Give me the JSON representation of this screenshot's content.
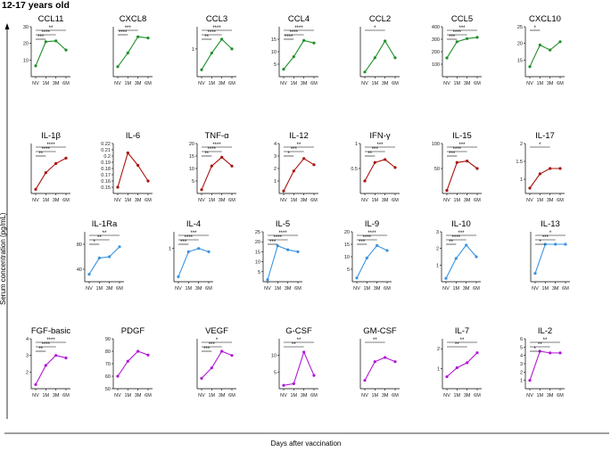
{
  "header": {
    "age_group": "12-17 years old"
  },
  "axis": {
    "y_label": "Serum concentration (pg/mL)",
    "x_label": "Days after vaccination"
  },
  "colors": {
    "green": "#1f8f2a",
    "red": "#a8120e",
    "blue": "#3a93e0",
    "purple": "#b117d6"
  },
  "chart_data": [
    {
      "type": "line",
      "title": "CCL11",
      "row": 0,
      "color": "green",
      "categories": [
        "NV",
        "1M",
        "3M",
        "6M"
      ],
      "values": [
        6.5,
        21,
        21.5,
        16
      ],
      "ylim": [
        0,
        30
      ],
      "yticks": [
        10,
        20,
        30
      ],
      "significance": [
        {
          "from": 0,
          "to": 3,
          "label": "**"
        },
        {
          "from": 0,
          "to": 2,
          "label": "****"
        },
        {
          "from": 0,
          "to": 1,
          "label": "***"
        }
      ]
    },
    {
      "type": "line",
      "title": "CXCL8",
      "row": 0,
      "color": "green",
      "categories": [
        "NV",
        "1M",
        "3M",
        "6M"
      ],
      "values": [
        0.9,
        1.45,
        2.1,
        2.05
      ],
      "ylim": [
        0.5,
        2.5
      ],
      "yticks": [],
      "significance": [
        {
          "from": 0,
          "to": 2,
          "label": "***"
        },
        {
          "from": 0,
          "to": 1,
          "label": "****"
        }
      ]
    },
    {
      "type": "line",
      "title": "CCL3",
      "row": 0,
      "color": "green",
      "categories": [
        "NV",
        "1M",
        "3M",
        "6M"
      ],
      "values": [
        0.25,
        0.85,
        1.35,
        1.0
      ],
      "ylim": [
        0,
        1.8
      ],
      "yticks": [
        1
      ],
      "significance": [
        {
          "from": 0,
          "to": 3,
          "label": "****"
        },
        {
          "from": 0,
          "to": 2,
          "label": "****"
        },
        {
          "from": 0,
          "to": 1,
          "label": "**"
        }
      ]
    },
    {
      "type": "line",
      "title": "CCL4",
      "row": 0,
      "color": "green",
      "categories": [
        "NV",
        "1M",
        "3M",
        "6M"
      ],
      "values": [
        3,
        8,
        14.5,
        13.5
      ],
      "ylim": [
        0,
        20
      ],
      "yticks": [
        5,
        10,
        15
      ],
      "significance": [
        {
          "from": 0,
          "to": 3,
          "label": "****"
        },
        {
          "from": 0,
          "to": 2,
          "label": "****"
        },
        {
          "from": 0,
          "to": 1,
          "label": "****"
        }
      ]
    },
    {
      "type": "line",
      "title": "CCL2",
      "row": 0,
      "color": "green",
      "categories": [
        "NV",
        "1M",
        "3M",
        "6M"
      ],
      "values": [
        5.3,
        9.3,
        14,
        9.3
      ],
      "ylim": [
        4,
        18
      ],
      "yticks": [],
      "significance": [
        {
          "from": 0,
          "to": 2,
          "label": "*"
        }
      ]
    },
    {
      "type": "line",
      "title": "CCL5",
      "row": 0,
      "color": "green",
      "categories": [
        "NV",
        "1M",
        "3M",
        "6M"
      ],
      "values": [
        150,
        280,
        305,
        315
      ],
      "ylim": [
        0,
        400
      ],
      "yticks": [
        100,
        200,
        300,
        400
      ],
      "significance": [
        {
          "from": 0,
          "to": 3,
          "label": "***"
        },
        {
          "from": 0,
          "to": 2,
          "label": "****"
        },
        {
          "from": 0,
          "to": 1,
          "label": "***"
        }
      ]
    },
    {
      "type": "line",
      "title": "CXCL10",
      "row": 0,
      "color": "green",
      "categories": [
        "NV",
        "1M",
        "3M",
        "6M"
      ],
      "values": [
        13,
        19.5,
        18,
        20.5
      ],
      "ylim": [
        10,
        25
      ],
      "yticks": [
        15,
        20,
        25
      ],
      "significance": [
        {
          "from": 0,
          "to": 1,
          "label": "*"
        }
      ]
    },
    {
      "type": "line",
      "title": "IL-1β",
      "row": 1,
      "color": "red",
      "categories": [
        "NV",
        "1M",
        "3M",
        "6M"
      ],
      "values": [
        0.1,
        0.5,
        0.72,
        0.85
      ],
      "ylim": [
        0,
        1.2
      ],
      "yticks": [],
      "significance": [
        {
          "from": 0,
          "to": 3,
          "label": "****"
        },
        {
          "from": 0,
          "to": 2,
          "label": "****"
        },
        {
          "from": 0,
          "to": 1,
          "label": "**"
        }
      ]
    },
    {
      "type": "line",
      "title": "IL-6",
      "row": 1,
      "color": "red",
      "categories": [
        "NV",
        "1M",
        "3M",
        "6M"
      ],
      "values": [
        0.15,
        0.205,
        0.185,
        0.16
      ],
      "ylim": [
        0.14,
        0.22
      ],
      "yticks": [
        0.15,
        0.16,
        0.17,
        0.18,
        0.19,
        0.2,
        0.21,
        0.22
      ],
      "significance": []
    },
    {
      "type": "line",
      "title": "TNF-α",
      "row": 1,
      "color": "red",
      "categories": [
        "NV",
        "1M",
        "3M",
        "6M"
      ],
      "values": [
        1.5,
        11,
        14.5,
        11
      ],
      "ylim": [
        0,
        20
      ],
      "yticks": [
        5,
        10,
        15,
        20
      ],
      "significance": [
        {
          "from": 0,
          "to": 3,
          "label": "****"
        },
        {
          "from": 0,
          "to": 2,
          "label": "****"
        },
        {
          "from": 0,
          "to": 1,
          "label": "**"
        }
      ]
    },
    {
      "type": "line",
      "title": "IL-12",
      "row": 1,
      "color": "red",
      "categories": [
        "NV",
        "1M",
        "3M",
        "6M"
      ],
      "values": [
        0.2,
        1.8,
        2.8,
        2.3
      ],
      "ylim": [
        0,
        4
      ],
      "yticks": [
        1,
        2,
        3,
        4
      ],
      "significance": [
        {
          "from": 0,
          "to": 3,
          "label": "**"
        },
        {
          "from": 0,
          "to": 2,
          "label": "***"
        },
        {
          "from": 0,
          "to": 1,
          "label": "*"
        }
      ]
    },
    {
      "type": "line",
      "title": "IFN-γ",
      "row": 1,
      "color": "red",
      "categories": [
        "NV",
        "1M",
        "3M",
        "6M"
      ],
      "values": [
        0.25,
        0.62,
        0.68,
        0.52
      ],
      "ylim": [
        0,
        1
      ],
      "yticks": [
        0.5,
        1.0
      ],
      "significance": [
        {
          "from": 0,
          "to": 3,
          "label": "***"
        },
        {
          "from": 0,
          "to": 2,
          "label": "***"
        },
        {
          "from": 0,
          "to": 1,
          "label": "**"
        }
      ]
    },
    {
      "type": "line",
      "title": "IL-15",
      "row": 1,
      "color": "red",
      "categories": [
        "NV",
        "1M",
        "3M",
        "6M"
      ],
      "values": [
        6,
        62,
        65,
        50
      ],
      "ylim": [
        0,
        100
      ],
      "yticks": [
        50,
        100
      ],
      "significance": [
        {
          "from": 0,
          "to": 3,
          "label": "***"
        },
        {
          "from": 0,
          "to": 2,
          "label": "****"
        },
        {
          "from": 0,
          "to": 1,
          "label": "***"
        }
      ]
    },
    {
      "type": "line",
      "title": "IL-17",
      "row": 1,
      "color": "red",
      "categories": [
        "NV",
        "1M",
        "3M",
        "6M"
      ],
      "values": [
        0.75,
        1.15,
        1.3,
        1.3
      ],
      "ylim": [
        0.6,
        2.0
      ],
      "yticks": [
        1.0,
        1.5,
        2.0
      ],
      "significance": [
        {
          "from": 0,
          "to": 2,
          "label": "*"
        }
      ]
    },
    {
      "type": "line",
      "title": "IL-1Ra",
      "row": 2,
      "color": "blue",
      "categories": [
        "NV",
        "1M",
        "3M",
        "6M"
      ],
      "values": [
        32,
        58,
        60,
        76
      ],
      "ylim": [
        20,
        100
      ],
      "yticks": [
        40,
        80
      ],
      "significance": [
        {
          "from": 0,
          "to": 3,
          "label": "**"
        },
        {
          "from": 0,
          "to": 2,
          "label": "**"
        },
        {
          "from": 0,
          "to": 1,
          "label": "*"
        }
      ]
    },
    {
      "type": "line",
      "title": "IL-4",
      "row": 2,
      "color": "blue",
      "categories": [
        "NV",
        "1M",
        "3M",
        "6M"
      ],
      "values": [
        0.15,
        0.9,
        1.0,
        0.9
      ],
      "ylim": [
        0,
        1.5
      ],
      "yticks": [
        1
      ],
      "significance": [
        {
          "from": 0,
          "to": 3,
          "label": "***"
        },
        {
          "from": 0,
          "to": 2,
          "label": "****"
        },
        {
          "from": 0,
          "to": 1,
          "label": "***"
        }
      ]
    },
    {
      "type": "line",
      "title": "IL-5",
      "row": 2,
      "color": "blue",
      "categories": [
        "NV",
        "1M",
        "3M",
        "6M"
      ],
      "values": [
        1,
        18,
        16,
        15
      ],
      "ylim": [
        0,
        25
      ],
      "yticks": [
        5,
        10,
        15,
        20,
        25
      ],
      "significance": [
        {
          "from": 0,
          "to": 3,
          "label": "****"
        },
        {
          "from": 0,
          "to": 2,
          "label": "****"
        },
        {
          "from": 0,
          "to": 1,
          "label": "***"
        }
      ]
    },
    {
      "type": "line",
      "title": "IL-9",
      "row": 2,
      "color": "blue",
      "categories": [
        "NV",
        "1M",
        "3M",
        "6M"
      ],
      "values": [
        1.5,
        9.5,
        14.5,
        12.5
      ],
      "ylim": [
        0,
        20
      ],
      "yticks": [
        5,
        10,
        15,
        20
      ],
      "significance": [
        {
          "from": 0,
          "to": 3,
          "label": "****"
        },
        {
          "from": 0,
          "to": 2,
          "label": "****"
        },
        {
          "from": 0,
          "to": 1,
          "label": "***"
        }
      ]
    },
    {
      "type": "line",
      "title": "IL-10",
      "row": 2,
      "color": "blue",
      "categories": [
        "NV",
        "1M",
        "3M",
        "6M"
      ],
      "values": [
        0.2,
        1.4,
        2.2,
        1.5
      ],
      "ylim": [
        0,
        3
      ],
      "yticks": [
        1,
        2,
        3
      ],
      "significance": [
        {
          "from": 0,
          "to": 3,
          "label": "***"
        },
        {
          "from": 0,
          "to": 2,
          "label": "****"
        },
        {
          "from": 0,
          "to": 1,
          "label": "**"
        }
      ]
    },
    {
      "type": "line",
      "title": "IL-13",
      "row": 2,
      "color": "blue",
      "categories": [
        "NV",
        "1M",
        "3M",
        "6M"
      ],
      "values": [
        0.1,
        0.45,
        0.45,
        0.45
      ],
      "ylim": [
        0,
        0.6
      ],
      "yticks": [],
      "significance": [
        {
          "from": 0,
          "to": 3,
          "label": "*"
        },
        {
          "from": 0,
          "to": 2,
          "label": "***"
        },
        {
          "from": 0,
          "to": 1,
          "label": "*"
        }
      ]
    },
    {
      "type": "line",
      "title": "FGF-basic",
      "row": 3,
      "color": "purple",
      "categories": [
        "NV",
        "1M",
        "3M",
        "6M"
      ],
      "values": [
        1.25,
        2.4,
        3.0,
        2.85
      ],
      "ylim": [
        1,
        4
      ],
      "yticks": [
        2,
        3,
        4
      ],
      "significance": [
        {
          "from": 0,
          "to": 3,
          "label": "****"
        },
        {
          "from": 0,
          "to": 2,
          "label": "****"
        },
        {
          "from": 0,
          "to": 1,
          "label": "**"
        }
      ]
    },
    {
      "type": "line",
      "title": "PDGF",
      "row": 3,
      "color": "purple",
      "categories": [
        "NV",
        "1M",
        "3M",
        "6M"
      ],
      "values": [
        60,
        72,
        80,
        77
      ],
      "ylim": [
        50,
        90
      ],
      "yticks": [
        50,
        60,
        70,
        80,
        90
      ],
      "significance": []
    },
    {
      "type": "line",
      "title": "VEGF",
      "row": 3,
      "color": "purple",
      "categories": [
        "NV",
        "1M",
        "3M",
        "6M"
      ],
      "values": [
        2.5,
        5,
        9,
        8
      ],
      "ylim": [
        0,
        12
      ],
      "yticks": [],
      "significance": [
        {
          "from": 0,
          "to": 3,
          "label": "*"
        },
        {
          "from": 0,
          "to": 2,
          "label": "***"
        },
        {
          "from": 0,
          "to": 1,
          "label": "***"
        }
      ]
    },
    {
      "type": "line",
      "title": "G-CSF",
      "row": 3,
      "color": "purple",
      "categories": [
        "NV",
        "1M",
        "3M",
        "6M"
      ],
      "values": [
        1,
        1.5,
        11,
        4
      ],
      "ylim": [
        0,
        15
      ],
      "yticks": [
        5,
        10
      ],
      "significance": [
        {
          "from": 0,
          "to": 3,
          "label": "**"
        },
        {
          "from": 0,
          "to": 2,
          "label": "**"
        }
      ]
    },
    {
      "type": "line",
      "title": "GM-CSF",
      "row": 3,
      "color": "purple",
      "categories": [
        "NV",
        "1M",
        "3M",
        "6M"
      ],
      "values": [
        0.2,
        0.65,
        0.75,
        0.65
      ],
      "ylim": [
        0,
        1.2
      ],
      "yticks": [],
      "significance": [
        {
          "from": 0,
          "to": 2,
          "label": "**"
        }
      ]
    },
    {
      "type": "line",
      "title": "IL-7",
      "row": 3,
      "color": "purple",
      "categories": [
        "NV",
        "1M",
        "3M",
        "6M"
      ],
      "values": [
        0.6,
        1.05,
        1.3,
        1.8
      ],
      "ylim": [
        0,
        2.5
      ],
      "yticks": [
        1,
        2
      ],
      "significance": [
        {
          "from": 0,
          "to": 3,
          "label": "**"
        },
        {
          "from": 0,
          "to": 2,
          "label": "**"
        }
      ]
    },
    {
      "type": "line",
      "title": "IL-2",
      "row": 3,
      "color": "purple",
      "categories": [
        "NV",
        "1M",
        "3M",
        "6M"
      ],
      "values": [
        1,
        4.5,
        4.3,
        4.3
      ],
      "ylim": [
        0,
        6
      ],
      "yticks": [
        1,
        2,
        3,
        4,
        5,
        6
      ],
      "significance": [
        {
          "from": 0,
          "to": 3,
          "label": "**"
        },
        {
          "from": 0,
          "to": 2,
          "label": "**"
        },
        {
          "from": 0,
          "to": 1,
          "label": "*"
        }
      ]
    }
  ]
}
